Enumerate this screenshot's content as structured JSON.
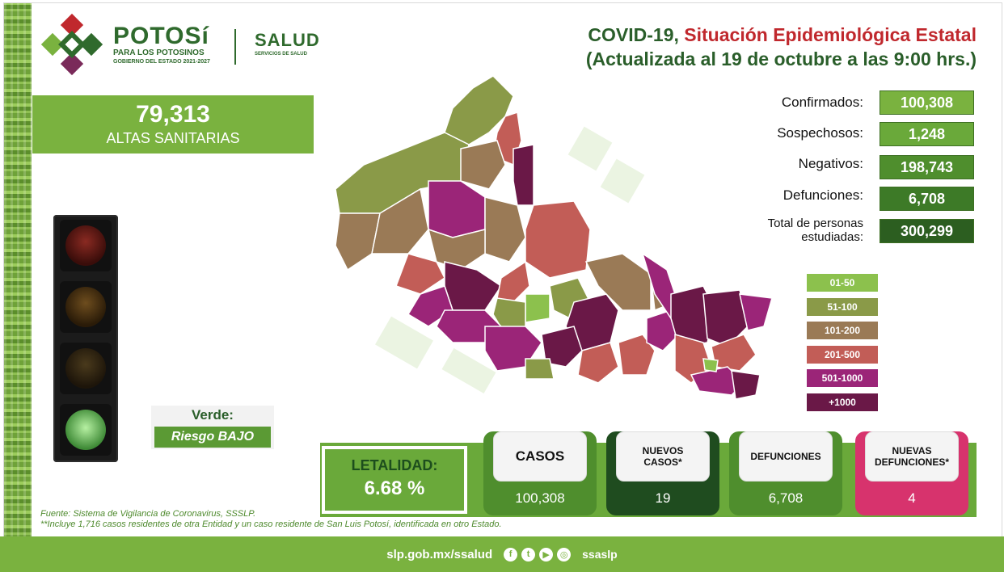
{
  "header": {
    "brand_name": "POTOSí",
    "brand_sub1": "PARA LOS POTOSINOS",
    "brand_sub2": "GOBIERNO DEL ESTADO 2021-2027",
    "salud": "SALUD",
    "salud_sub": "SERVICIOS DE SALUD"
  },
  "title": {
    "line1_part1": "COVID-19,",
    "line1_part2": "Situación Epidemiológica Estatal",
    "line2": "(Actualizada al 19 de octubre a las 9:00 hrs.)"
  },
  "altas": {
    "number": "79,313",
    "label": "ALTAS SANITARIAS"
  },
  "risk": {
    "color_label": "Verde:",
    "level_label": "Riesgo BAJO",
    "active_light": "green"
  },
  "stats": [
    {
      "label": "Confirmados:",
      "value": "100,308",
      "color": "#7ab23f"
    },
    {
      "label": "Sospechosos:",
      "value": "1,248",
      "color": "#6aa93a"
    },
    {
      "label": "Negativos:",
      "value": "198,743",
      "color": "#4f8e2d"
    },
    {
      "label": "Defunciones:",
      "value": "6,708",
      "color": "#3d7a27"
    },
    {
      "label": "Total de personas estudiadas:",
      "value": "300,299",
      "color": "#2c5e20"
    }
  ],
  "legend": [
    {
      "label": "01-50",
      "color": "#8cc14d"
    },
    {
      "label": "51-100",
      "color": "#8a9a48"
    },
    {
      "label": "101-200",
      "color": "#9a7a56"
    },
    {
      "label": "201-500",
      "color": "#c25d57"
    },
    {
      "label": "501-1000",
      "color": "#9b2578"
    },
    {
      "label": "+1000",
      "color": "#6a1847"
    }
  ],
  "bottom": {
    "letalidad_label": "LETALIDAD:",
    "letalidad_value": "6.68 %",
    "cards": [
      {
        "title": "CASOS",
        "value": "100,308",
        "color": "#4f8e2d"
      },
      {
        "title": "NUEVOS CASOS*",
        "value": "19",
        "color": "#1f4c1f"
      },
      {
        "title": "DEFUNCIONES",
        "value": "6,708",
        "color": "#4f8e2d"
      },
      {
        "title": "NUEVAS DEFUNCIONES*",
        "value": "4",
        "color": "#d7336d"
      }
    ]
  },
  "source": {
    "line1": "Fuente: Sistema de Vigilancia de Coronavirus, SSSLP.",
    "line2": "**Incluye 1,716 casos residentes de otra Entidad y un caso residente de San Luis Potosí, identificada en otro Estado."
  },
  "footer": {
    "site": "slp.gob.mx/ssalud",
    "icons": [
      "facebook-icon",
      "twitter-icon",
      "youtube-icon",
      "instagram-icon"
    ],
    "handle": "ssaslp"
  }
}
